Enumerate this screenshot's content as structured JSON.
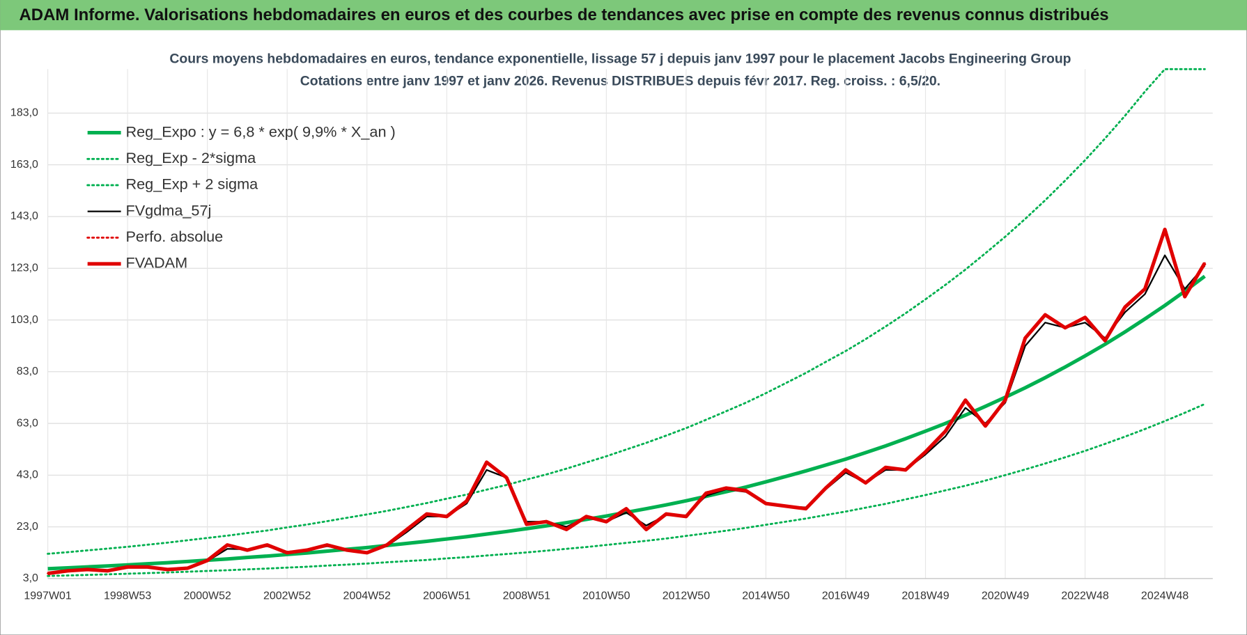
{
  "chart_data": {
    "type": "line",
    "banner": "ADAM Informe. Valorisations hebdomadaires en euros et des courbes de tendances avec prise en compte des revenus connus distribués",
    "title": "Cours moyens hebdomadaires en euros, tendance exponentielle, lissage 57 j depuis janv 1997 pour le placement Jacobs Engineering Group",
    "subtitle": "Cotations entre janv 1997 et janv 2026. Revenus DISTRIBUES depuis févr 2017. Reg. croiss. : 6,5/20.",
    "categories": [
      "1997W01",
      null,
      null,
      null,
      "1998W53",
      null,
      null,
      null,
      "2000W52",
      null,
      null,
      null,
      "2002W52",
      null,
      null,
      null,
      "2004W52",
      null,
      null,
      null,
      "2006W51",
      null,
      null,
      null,
      "2008W51",
      null,
      null,
      null,
      "2010W50",
      null,
      null,
      null,
      "2012W50",
      null,
      null,
      null,
      "2014W50",
      null,
      null,
      null,
      "2016W49",
      null,
      null,
      null,
      "2018W49",
      null,
      null,
      null,
      "2020W49",
      null,
      null,
      null,
      "2022W48",
      null,
      null,
      null,
      "2024W48",
      null,
      null
    ],
    "ylim": [
      3,
      200
    ],
    "yticks": [
      {
        "value": 3,
        "label": "3,0"
      },
      {
        "value": 23,
        "label": "23,0"
      },
      {
        "value": 43,
        "label": "43,0"
      },
      {
        "value": 63,
        "label": "63,0"
      },
      {
        "value": 83,
        "label": "83,0"
      },
      {
        "value": 103,
        "label": "103,0"
      },
      {
        "value": 123,
        "label": "123,0"
      },
      {
        "value": 143,
        "label": "143,0"
      },
      {
        "value": 163,
        "label": "163,0"
      },
      {
        "value": 183,
        "label": "183,0"
      }
    ],
    "grid": true,
    "legend": "top-left",
    "series": [
      {
        "name": "Reg_Expo : y = 6,8 * exp( 9,9% *  X_an )",
        "color": "#00b050",
        "style": "thick",
        "values": [
          6.8,
          7.14,
          7.51,
          7.89,
          8.29,
          8.71,
          9.15,
          9.61,
          10.1,
          10.6,
          11.16,
          11.7,
          12.3,
          12.9,
          13.6,
          14.3,
          15.0,
          15.8,
          16.6,
          17.4,
          18.3,
          19.2,
          20.2,
          21.2,
          22.3,
          23.4,
          24.6,
          25.9,
          27.2,
          28.6,
          30.0,
          31.5,
          33.1,
          34.8,
          36.6,
          38.4,
          40.4,
          42.5,
          44.6,
          46.9,
          49.2,
          51.7,
          54.3,
          57.1,
          60.0,
          63.0,
          66.2,
          69.6,
          73.1,
          76.8,
          80.7,
          84.8,
          89.1,
          93.6,
          98.4,
          103.4,
          108.6,
          114.1,
          119.9
        ]
      },
      {
        "name": "Reg_Exp - 2*sigma",
        "color": "#00b050",
        "style": "dotted",
        "values": [
          4.0,
          4.2,
          4.42,
          4.64,
          4.88,
          5.12,
          5.38,
          5.65,
          5.94,
          6.24,
          6.56,
          6.88,
          7.24,
          7.59,
          8.0,
          8.41,
          8.82,
          9.29,
          9.76,
          10.2,
          10.8,
          11.3,
          11.9,
          12.5,
          13.1,
          13.8,
          14.5,
          15.2,
          16.0,
          16.8,
          17.6,
          18.5,
          19.5,
          20.5,
          21.5,
          22.6,
          23.8,
          25.0,
          26.2,
          27.6,
          28.9,
          30.4,
          31.9,
          33.6,
          35.3,
          37.1,
          38.9,
          40.9,
          43.0,
          45.2,
          47.5,
          49.9,
          52.4,
          55.1,
          57.9,
          60.8,
          63.9,
          67.1,
          70.5
        ]
      },
      {
        "name": "Reg_Exp + 2 sigma",
        "color": "#00b050",
        "style": "dotted",
        "values": [
          12.6,
          13.2,
          13.9,
          14.6,
          15.3,
          16.1,
          16.9,
          17.8,
          18.7,
          19.6,
          20.6,
          21.6,
          22.8,
          23.9,
          25.2,
          26.5,
          27.8,
          29.2,
          30.7,
          32.2,
          33.9,
          35.5,
          37.4,
          39.2,
          41.3,
          43.3,
          45.5,
          47.9,
          50.3,
          52.9,
          55.5,
          58.3,
          61.2,
          64.4,
          67.7,
          71.0,
          74.7,
          78.6,
          82.5,
          86.8,
          91.0,
          95.6,
          100.5,
          105.6,
          111.0,
          116.6,
          122.5,
          128.8,
          135.2,
          142.1,
          149.3,
          156.9,
          164.8,
          173.2,
          182.0,
          191.3,
          200,
          200,
          200
        ]
      },
      {
        "name": "FVgdma_57j",
        "color": "#000000",
        "style": "solid",
        "values": [
          5,
          5.8,
          6.3,
          6.1,
          7.2,
          7.4,
          6.7,
          7.1,
          9.8,
          14.5,
          14.3,
          15.5,
          13.4,
          14.0,
          15.5,
          14.2,
          13.3,
          15.6,
          21.0,
          27.0,
          27.0,
          32.0,
          45.0,
          42.0,
          25.0,
          25.0,
          23.0,
          26.5,
          25.0,
          28.5,
          23.5,
          27.5,
          27.5,
          35.0,
          37.5,
          36.5,
          32.0,
          31.0,
          30.5,
          37.5,
          44.0,
          40.0,
          45.0,
          45.0,
          51.0,
          58.0,
          69.0,
          63.0,
          71.0,
          93.0,
          102.0,
          100.0,
          102.0,
          96.0,
          106.0,
          113.0,
          128.0,
          115.0,
          124.0
        ]
      },
      {
        "name": "Perfo. absolue",
        "color": "#e00000",
        "style": "dotted",
        "values": [
          5,
          6,
          6.5,
          6,
          7.5,
          7.5,
          6.5,
          7,
          10,
          16,
          14,
          16,
          13,
          14,
          16,
          14,
          13,
          16,
          22,
          28,
          27,
          33,
          48,
          42,
          24,
          25,
          22,
          27,
          25,
          30,
          22,
          28,
          27,
          36,
          38,
          37,
          32,
          31,
          30,
          38,
          45,
          40,
          46,
          45,
          52,
          60,
          72,
          62,
          72,
          96,
          105,
          100,
          104,
          95,
          108,
          115,
          138,
          112,
          125
        ]
      },
      {
        "name": "FVADAM",
        "color": "#e00000",
        "style": "thick",
        "values": [
          5,
          6,
          6.5,
          6,
          7.5,
          7.5,
          6.5,
          7,
          10,
          16,
          14,
          16,
          13,
          14,
          16,
          14,
          13,
          16,
          22,
          28,
          27,
          33,
          48,
          42,
          24,
          25,
          22,
          27,
          25,
          30,
          22,
          28,
          27,
          36,
          38,
          37,
          32,
          31,
          30,
          38,
          45,
          40,
          46,
          45,
          52,
          60,
          72,
          62,
          72,
          96,
          105,
          100,
          104,
          95,
          108,
          115,
          138,
          112,
          125
        ]
      }
    ]
  }
}
